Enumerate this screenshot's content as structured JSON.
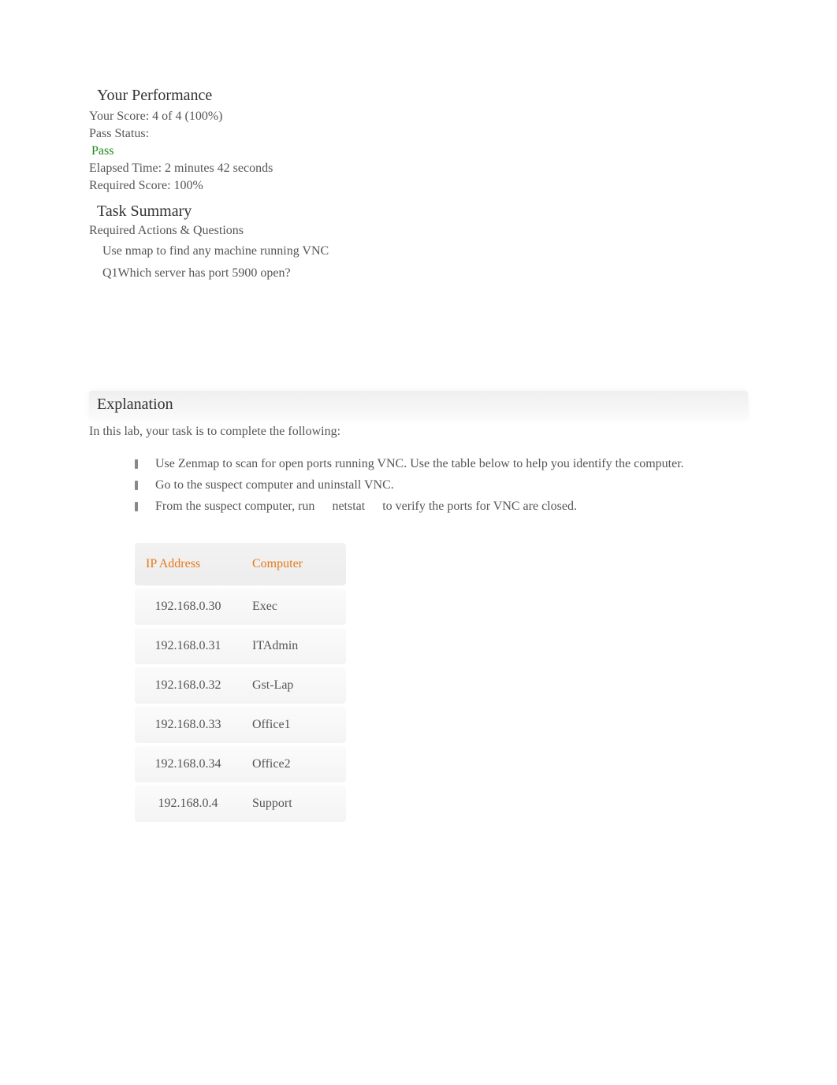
{
  "performance": {
    "heading": "Your Performance",
    "score_label": "Your Score: 4 of 4 (100%)",
    "pass_status_label": "Pass Status:",
    "pass_status_value": "Pass",
    "elapsed_time": "Elapsed Time: 2 minutes 42 seconds",
    "required_score": "Required Score: 100%"
  },
  "task_summary": {
    "heading": "Task Summary",
    "subheading": "Required Actions & Questions",
    "items": [
      "Use nmap to find any machine running VNC",
      "Q1Which server has port 5900 open?"
    ]
  },
  "explanation": {
    "heading": "Explanation",
    "intro": "In this lab, your task is to complete the following:",
    "bullets": [
      "Use Zenmap to scan for open ports running VNC. Use the table below to help you identify the computer.",
      "Go to the suspect computer and uninstall VNC.",
      "__NETSTAT__"
    ],
    "netstat_line_prefix": "From the suspect computer, run",
    "netstat_word": "netstat",
    "netstat_line_suffix": "to verify the ports for VNC are closed."
  },
  "table": {
    "header_ip": "IP Address",
    "header_computer": "Computer",
    "rows": [
      {
        "ip": "192.168.0.30",
        "computer": "Exec"
      },
      {
        "ip": "192.168.0.31",
        "computer": "ITAdmin"
      },
      {
        "ip": "192.168.0.32",
        "computer": "Gst-Lap"
      },
      {
        "ip": "192.168.0.33",
        "computer": "Office1"
      },
      {
        "ip": "192.168.0.34",
        "computer": "Office2"
      },
      {
        "ip": "192.168.0.4",
        "computer": "Support"
      }
    ]
  },
  "colors": {
    "text_primary": "#333333",
    "text_secondary": "#555555",
    "pass_green": "#1a8a1a",
    "accent_orange": "#e67817",
    "row_bg": "#f6f6f6",
    "header_bg": "#efefef"
  }
}
